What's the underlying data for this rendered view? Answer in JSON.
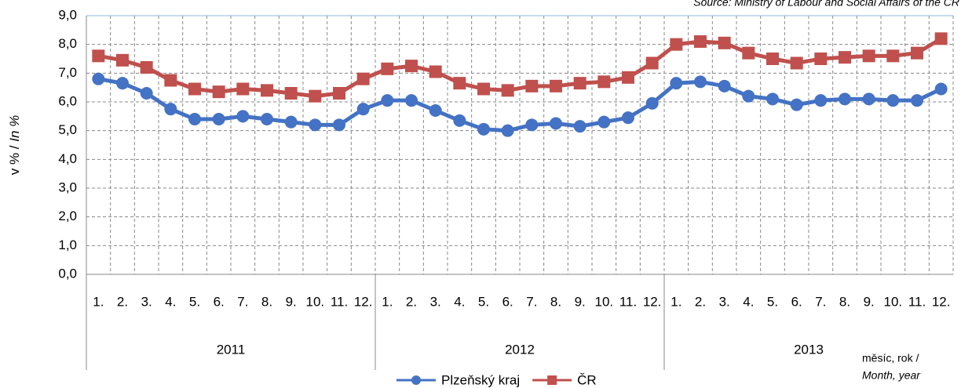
{
  "chart_data": {
    "type": "line",
    "source": "Source: Ministry of Labour and Social Affairs of the CR",
    "y_label": "v % / ",
    "y_label_italic": "In %",
    "x_label": "měsíc, rok /",
    "x_label_italic": "Month, year",
    "categories": [
      "1.",
      "2.",
      "3.",
      "4.",
      "5.",
      "6.",
      "7.",
      "8.",
      "9.",
      "10.",
      "11.",
      "12.",
      "1.",
      "2.",
      "3.",
      "4.",
      "5.",
      "6.",
      "7.",
      "8.",
      "9.",
      "10.",
      "11.",
      "12.",
      "1.",
      "2.",
      "3.",
      "4.",
      "5.",
      "6.",
      "7.",
      "8.",
      "9.",
      "10.",
      "11.",
      "12."
    ],
    "years": [
      "2011",
      "2012",
      "2013"
    ],
    "series": [
      {
        "name": "Plzeňský kraj",
        "color": "#4472c4",
        "marker": "circle",
        "values": [
          6.8,
          6.65,
          6.3,
          5.75,
          5.4,
          5.4,
          5.5,
          5.4,
          5.3,
          5.2,
          5.2,
          5.75,
          6.05,
          6.05,
          5.7,
          5.35,
          5.05,
          5.0,
          5.2,
          5.25,
          5.15,
          5.3,
          5.45,
          5.95,
          6.65,
          6.7,
          6.55,
          6.2,
          6.1,
          5.9,
          6.05,
          6.1,
          6.1,
          6.05,
          6.05,
          6.45
        ]
      },
      {
        "name": "ČR",
        "color": "#c0504d",
        "marker": "square",
        "values": [
          7.6,
          7.45,
          7.2,
          6.75,
          6.45,
          6.35,
          6.45,
          6.4,
          6.3,
          6.2,
          6.3,
          6.8,
          7.15,
          7.25,
          7.05,
          6.65,
          6.45,
          6.4,
          6.55,
          6.55,
          6.65,
          6.7,
          6.85,
          7.35,
          8.0,
          8.1,
          8.05,
          7.7,
          7.5,
          7.35,
          7.5,
          7.55,
          7.6,
          7.6,
          7.7,
          8.2
        ]
      }
    ],
    "ylim": [
      0,
      9
    ],
    "yticks": [
      {
        "value": 0,
        "label": "0,0"
      },
      {
        "value": 1,
        "label": "1,0"
      },
      {
        "value": 2,
        "label": "2,0"
      },
      {
        "value": 3,
        "label": "3,0"
      },
      {
        "value": 4,
        "label": "4,0"
      },
      {
        "value": 5,
        "label": "5,0"
      },
      {
        "value": 6,
        "label": "6,0"
      },
      {
        "value": 7,
        "label": "7,0"
      },
      {
        "value": 8,
        "label": "8,0"
      },
      {
        "value": 9,
        "label": "9,0"
      }
    ],
    "grid": true
  }
}
